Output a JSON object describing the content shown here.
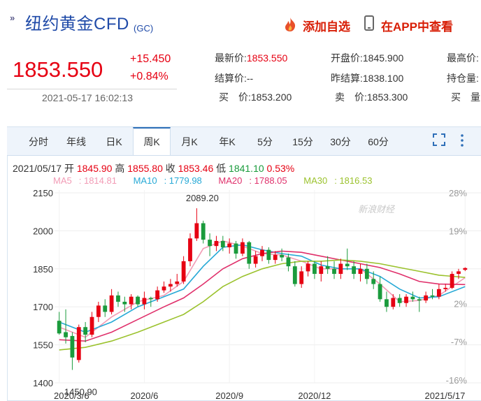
{
  "header": {
    "title": "纽约黄金CFD",
    "code": "(GC)",
    "add_label": "添加自选",
    "app_label": "在APP中查看"
  },
  "quote": {
    "price": "1853.550",
    "change": "+15.450",
    "change_pct": "+0.84%",
    "time": "2021-05-17 16:02:13",
    "fields": [
      {
        "label": "最新价:",
        "value": "1853.550",
        "red": true
      },
      {
        "label": "开盘价:",
        "value": "1845.900",
        "red": false
      },
      {
        "label": "最高价:",
        "value": "",
        "red": false
      },
      {
        "label": "结算价:",
        "value": "--",
        "red": false
      },
      {
        "label": "昨结算:",
        "value": "1838.100",
        "red": false
      },
      {
        "label": "持仓量:",
        "value": "",
        "red": false
      },
      {
        "label": "买　价:",
        "value": "1853.200",
        "red": false
      },
      {
        "label": "卖　价:",
        "value": "1853.300",
        "red": false
      },
      {
        "label": "买　量:",
        "value": "",
        "red": false
      }
    ],
    "colors": {
      "up": "#e60012",
      "down": "#1a9b3c"
    }
  },
  "tabs": [
    "分时",
    "年线",
    "日K",
    "周K",
    "月K",
    "年K",
    "5分",
    "15分",
    "30分",
    "60分"
  ],
  "active_tab": "周K",
  "ohlc": {
    "date": "2021/05/17",
    "open_label": "开",
    "open": "1845.90",
    "high_label": "高",
    "high": "1855.80",
    "close_label": "收",
    "close": "1853.46",
    "low_label": "低",
    "low": "1841.10",
    "pct": "0.53%"
  },
  "ma_legend": [
    {
      "name": "MA5",
      "value": "1814.81",
      "color": "#f29bb5"
    },
    {
      "name": "MA10",
      "value": "1779.98",
      "color": "#27a9d6"
    },
    {
      "name": "MA20",
      "value": "1788.05",
      "color": "#e0306b"
    },
    {
      "name": "MA30",
      "value": "1816.53",
      "color": "#9bc22d"
    }
  ],
  "watermark": "新浪财经",
  "chart_data": {
    "type": "candlestick",
    "ylim": [
      1400,
      2150
    ],
    "y_ticks": [
      1400,
      1550,
      1700,
      1850,
      2000,
      2150
    ],
    "y_tick_labels": [
      "1400",
      "1550",
      "1700",
      "1850",
      "2000",
      "2150"
    ],
    "pct_ticks": [
      28,
      19,
      2,
      -7,
      -16
    ],
    "pct_tick_labels": [
      "28%",
      "19%",
      "2%",
      "-7%",
      "-16%"
    ],
    "x_labels": [
      {
        "label": "2020/3/6",
        "index": 0
      },
      {
        "label": "2020/6",
        "index": 13
      },
      {
        "label": "2020/9",
        "index": 26
      },
      {
        "label": "2020/12",
        "index": 39
      },
      {
        "label": "2021/5/17",
        "index": 62
      }
    ],
    "annotations": [
      {
        "label": "2089.20",
        "index": 21,
        "value": 2089.2
      },
      {
        "label": "1450.90",
        "index": 2,
        "value": 1450.9
      }
    ],
    "candles": [
      [
        1645,
        1680,
        1590,
        1595
      ],
      [
        1600,
        1690,
        1555,
        1580
      ],
      [
        1585,
        1600,
        1451,
        1500
      ],
      [
        1490,
        1630,
        1480,
        1620
      ],
      [
        1620,
        1640,
        1560,
        1590
      ],
      [
        1590,
        1680,
        1580,
        1660
      ],
      [
        1660,
        1720,
        1640,
        1705
      ],
      [
        1705,
        1730,
        1660,
        1680
      ],
      [
        1680,
        1770,
        1670,
        1745
      ],
      [
        1745,
        1760,
        1700,
        1720
      ],
      [
        1720,
        1740,
        1680,
        1710
      ],
      [
        1710,
        1750,
        1690,
        1740
      ],
      [
        1740,
        1745,
        1700,
        1710
      ],
      [
        1710,
        1760,
        1690,
        1735
      ],
      [
        1735,
        1740,
        1700,
        1730
      ],
      [
        1730,
        1780,
        1720,
        1765
      ],
      [
        1765,
        1800,
        1755,
        1780
      ],
      [
        1780,
        1810,
        1760,
        1790
      ],
      [
        1790,
        1830,
        1780,
        1800
      ],
      [
        1800,
        1900,
        1790,
        1880
      ],
      [
        1880,
        1990,
        1860,
        1970
      ],
      [
        1970,
        2089,
        1960,
        2030
      ],
      [
        2030,
        2040,
        1950,
        1965
      ],
      [
        1965,
        1990,
        1900,
        1940
      ],
      [
        1940,
        1980,
        1920,
        1960
      ],
      [
        1960,
        1980,
        1920,
        1935
      ],
      [
        1935,
        1970,
        1910,
        1950
      ],
      [
        1950,
        1960,
        1890,
        1910
      ],
      [
        1910,
        1970,
        1900,
        1955
      ],
      [
        1955,
        1960,
        1850,
        1870
      ],
      [
        1870,
        1920,
        1855,
        1900
      ],
      [
        1900,
        1940,
        1880,
        1925
      ],
      [
        1925,
        1935,
        1870,
        1885
      ],
      [
        1885,
        1920,
        1870,
        1905
      ],
      [
        1905,
        1930,
        1880,
        1895
      ],
      [
        1895,
        1910,
        1840,
        1860
      ],
      [
        1860,
        1880,
        1780,
        1790
      ],
      [
        1790,
        1860,
        1775,
        1840
      ],
      [
        1840,
        1880,
        1820,
        1870
      ],
      [
        1870,
        1880,
        1810,
        1830
      ],
      [
        1830,
        1880,
        1800,
        1860
      ],
      [
        1860,
        1900,
        1830,
        1850
      ],
      [
        1850,
        1880,
        1810,
        1830
      ],
      [
        1830,
        1890,
        1810,
        1870
      ],
      [
        1870,
        1930,
        1845,
        1860
      ],
      [
        1860,
        1880,
        1810,
        1830
      ],
      [
        1830,
        1870,
        1800,
        1850
      ],
      [
        1850,
        1870,
        1790,
        1810
      ],
      [
        1810,
        1840,
        1770,
        1790
      ],
      [
        1790,
        1820,
        1720,
        1730
      ],
      [
        1730,
        1760,
        1680,
        1700
      ],
      [
        1700,
        1750,
        1690,
        1735
      ],
      [
        1735,
        1750,
        1700,
        1715
      ],
      [
        1715,
        1750,
        1700,
        1740
      ],
      [
        1740,
        1760,
        1720,
        1730
      ],
      [
        1730,
        1740,
        1680,
        1725
      ],
      [
        1725,
        1760,
        1715,
        1745
      ],
      [
        1745,
        1770,
        1730,
        1740
      ],
      [
        1740,
        1790,
        1730,
        1770
      ],
      [
        1770,
        1790,
        1760,
        1775
      ],
      [
        1775,
        1840,
        1770,
        1830
      ],
      [
        1830,
        1850,
        1810,
        1840
      ],
      [
        1846,
        1856,
        1841,
        1853
      ]
    ],
    "ma": [
      {
        "name": "MA5",
        "color": "#f29bb5",
        "values": [
          [
            0,
            1620
          ],
          [
            4,
            1580
          ],
          [
            8,
            1660
          ],
          [
            12,
            1720
          ],
          [
            16,
            1745
          ],
          [
            19,
            1800
          ],
          [
            22,
            1930
          ],
          [
            25,
            1960
          ],
          [
            28,
            1940
          ],
          [
            31,
            1910
          ],
          [
            34,
            1905
          ],
          [
            37,
            1880
          ],
          [
            40,
            1850
          ],
          [
            43,
            1850
          ],
          [
            46,
            1850
          ],
          [
            49,
            1790
          ],
          [
            52,
            1720
          ],
          [
            55,
            1725
          ],
          [
            58,
            1745
          ],
          [
            62,
            1815
          ]
        ]
      },
      {
        "name": "MA10",
        "color": "#27a9d6",
        "values": [
          [
            0,
            1640
          ],
          [
            4,
            1600
          ],
          [
            8,
            1640
          ],
          [
            12,
            1700
          ],
          [
            16,
            1740
          ],
          [
            19,
            1770
          ],
          [
            22,
            1860
          ],
          [
            25,
            1935
          ],
          [
            28,
            1945
          ],
          [
            31,
            1925
          ],
          [
            34,
            1910
          ],
          [
            37,
            1900
          ],
          [
            40,
            1865
          ],
          [
            43,
            1850
          ],
          [
            46,
            1850
          ],
          [
            49,
            1820
          ],
          [
            52,
            1770
          ],
          [
            55,
            1735
          ],
          [
            58,
            1740
          ],
          [
            62,
            1780
          ]
        ]
      },
      {
        "name": "MA20",
        "color": "#e0306b",
        "values": [
          [
            0,
            1570
          ],
          [
            4,
            1565
          ],
          [
            8,
            1600
          ],
          [
            12,
            1650
          ],
          [
            16,
            1700
          ],
          [
            19,
            1735
          ],
          [
            22,
            1790
          ],
          [
            25,
            1850
          ],
          [
            28,
            1890
          ],
          [
            31,
            1910
          ],
          [
            34,
            1920
          ],
          [
            37,
            1915
          ],
          [
            40,
            1900
          ],
          [
            43,
            1885
          ],
          [
            46,
            1870
          ],
          [
            49,
            1855
          ],
          [
            52,
            1830
          ],
          [
            55,
            1800
          ],
          [
            58,
            1790
          ],
          [
            62,
            1788
          ]
        ]
      },
      {
        "name": "MA30",
        "color": "#9bc22d",
        "values": [
          [
            0,
            1530
          ],
          [
            4,
            1540
          ],
          [
            8,
            1565
          ],
          [
            12,
            1600
          ],
          [
            16,
            1640
          ],
          [
            19,
            1670
          ],
          [
            22,
            1720
          ],
          [
            25,
            1780
          ],
          [
            28,
            1820
          ],
          [
            31,
            1850
          ],
          [
            34,
            1870
          ],
          [
            37,
            1880
          ],
          [
            40,
            1880
          ],
          [
            43,
            1885
          ],
          [
            46,
            1880
          ],
          [
            49,
            1870
          ],
          [
            52,
            1855
          ],
          [
            55,
            1840
          ],
          [
            58,
            1825
          ],
          [
            62,
            1816
          ]
        ]
      }
    ]
  }
}
